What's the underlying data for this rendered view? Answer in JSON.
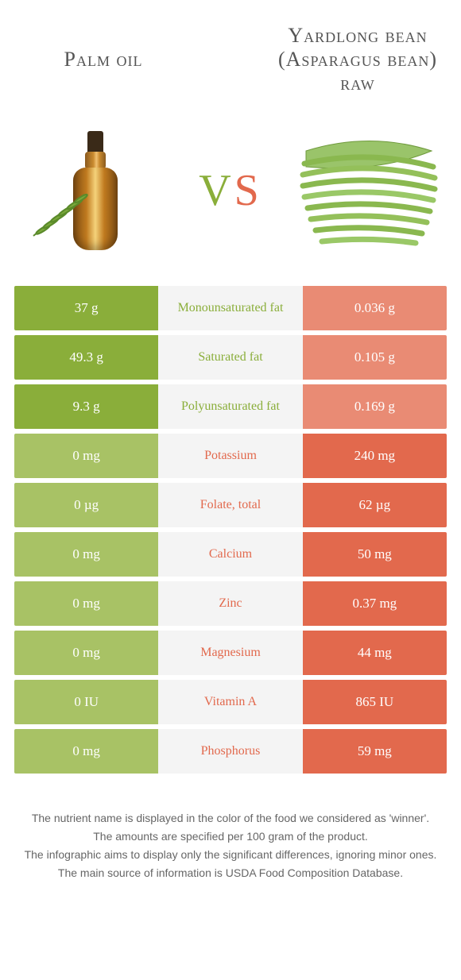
{
  "colors": {
    "left": "#8aae3a",
    "right": "#e2694d",
    "mid_bg": "#f4f4f4",
    "left_dim": "#a8c265",
    "right_dim": "#e98b74"
  },
  "foods": {
    "left": {
      "title": "Palm oil"
    },
    "right": {
      "title": "Yardlong bean (Asparagus bean) raw"
    }
  },
  "vs": {
    "v": "V",
    "s": "S"
  },
  "rows": [
    {
      "label": "Monounsaturated fat",
      "left": "37 g",
      "right": "0.036 g",
      "winner": "left"
    },
    {
      "label": "Saturated fat",
      "left": "49.3 g",
      "right": "0.105 g",
      "winner": "left"
    },
    {
      "label": "Polyunsaturated fat",
      "left": "9.3 g",
      "right": "0.169 g",
      "winner": "left"
    },
    {
      "label": "Potassium",
      "left": "0 mg",
      "right": "240 mg",
      "winner": "right"
    },
    {
      "label": "Folate, total",
      "left": "0 µg",
      "right": "62 µg",
      "winner": "right"
    },
    {
      "label": "Calcium",
      "left": "0 mg",
      "right": "50 mg",
      "winner": "right"
    },
    {
      "label": "Zinc",
      "left": "0 mg",
      "right": "0.37 mg",
      "winner": "right"
    },
    {
      "label": "Magnesium",
      "left": "0 mg",
      "right": "44 mg",
      "winner": "right"
    },
    {
      "label": "Vitamin A",
      "left": "0 IU",
      "right": "865 IU",
      "winner": "right"
    },
    {
      "label": "Phosphorus",
      "left": "0 mg",
      "right": "59 mg",
      "winner": "right"
    }
  ],
  "footer": [
    "The nutrient name is displayed in the color of the food we considered as 'winner'.",
    "The amounts are specified per 100 gram of the product.",
    "The infographic aims to display only the significant differences, ignoring minor ones.",
    "The main source of information is USDA Food Composition Database."
  ]
}
